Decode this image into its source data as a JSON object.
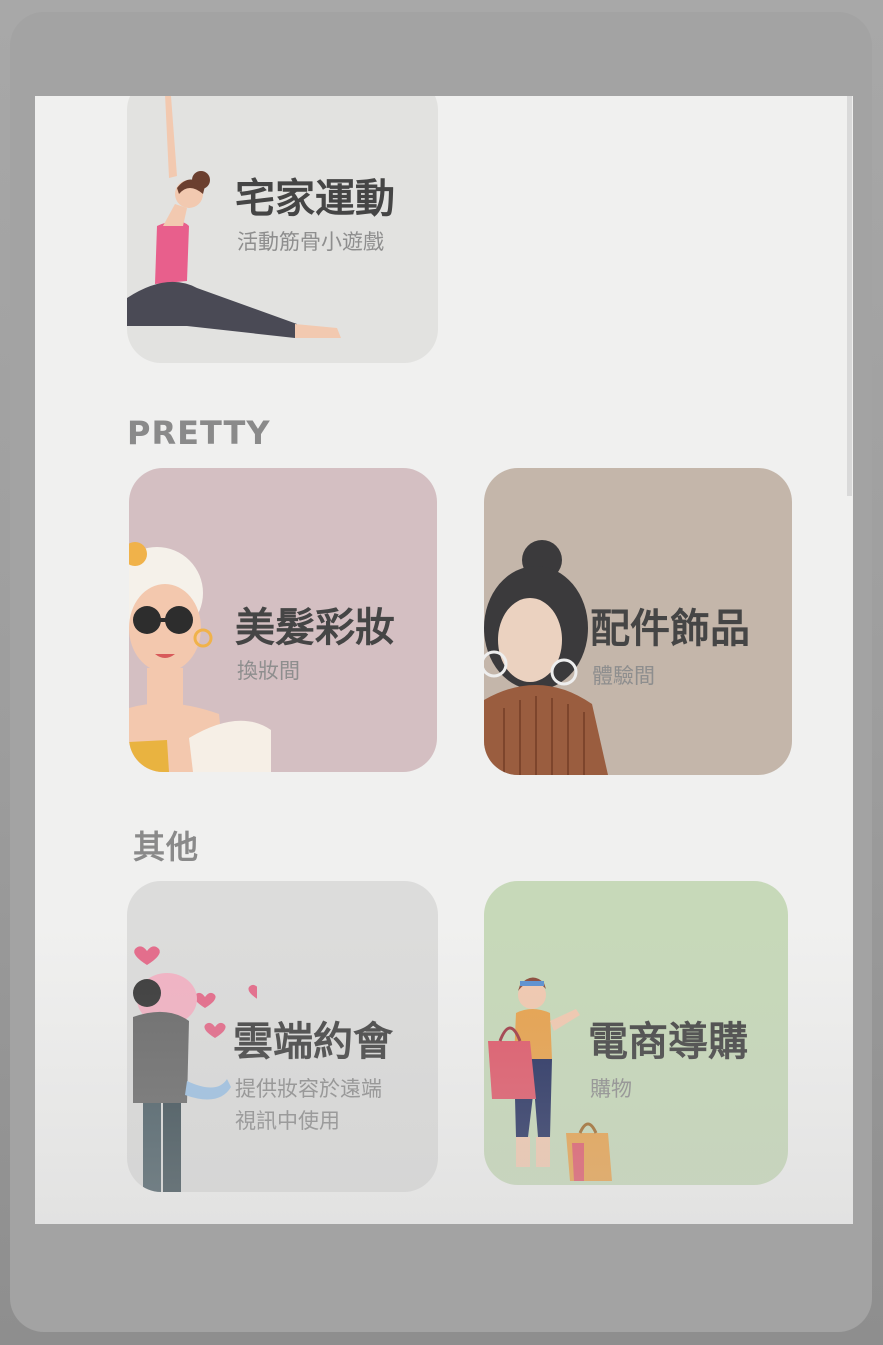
{
  "sections": {
    "pretty_label": "PRETTY",
    "other_label": "其他"
  },
  "cards": {
    "home_workout": {
      "title": "宅家運動",
      "subtitle": "活動筋骨小遊戲"
    },
    "hair_makeup": {
      "title": "美髮彩妝",
      "subtitle": "換妝間"
    },
    "accessories": {
      "title": "配件飾品",
      "subtitle": "體驗間"
    },
    "cloud_date": {
      "title": "雲端約會",
      "subtitle": "提供妝容於遠端\n視訊中使用"
    },
    "ecommerce": {
      "title": "電商導購",
      "subtitle": "購物"
    }
  },
  "colors": {
    "card_gray": "#e2e2e0",
    "card_pink": "#d4bfc2",
    "card_tan": "#c4b6aa",
    "card_green": "#c7d9b9",
    "accent_pink": "#e46b8a"
  },
  "icons": {
    "home_workout": "yoga-pose-woman",
    "hair_makeup": "woman-sunglasses",
    "accessories": "woman-hoop-earrings",
    "cloud_date": "couple-hugging-hearts",
    "ecommerce": "woman-shopping-bags"
  }
}
